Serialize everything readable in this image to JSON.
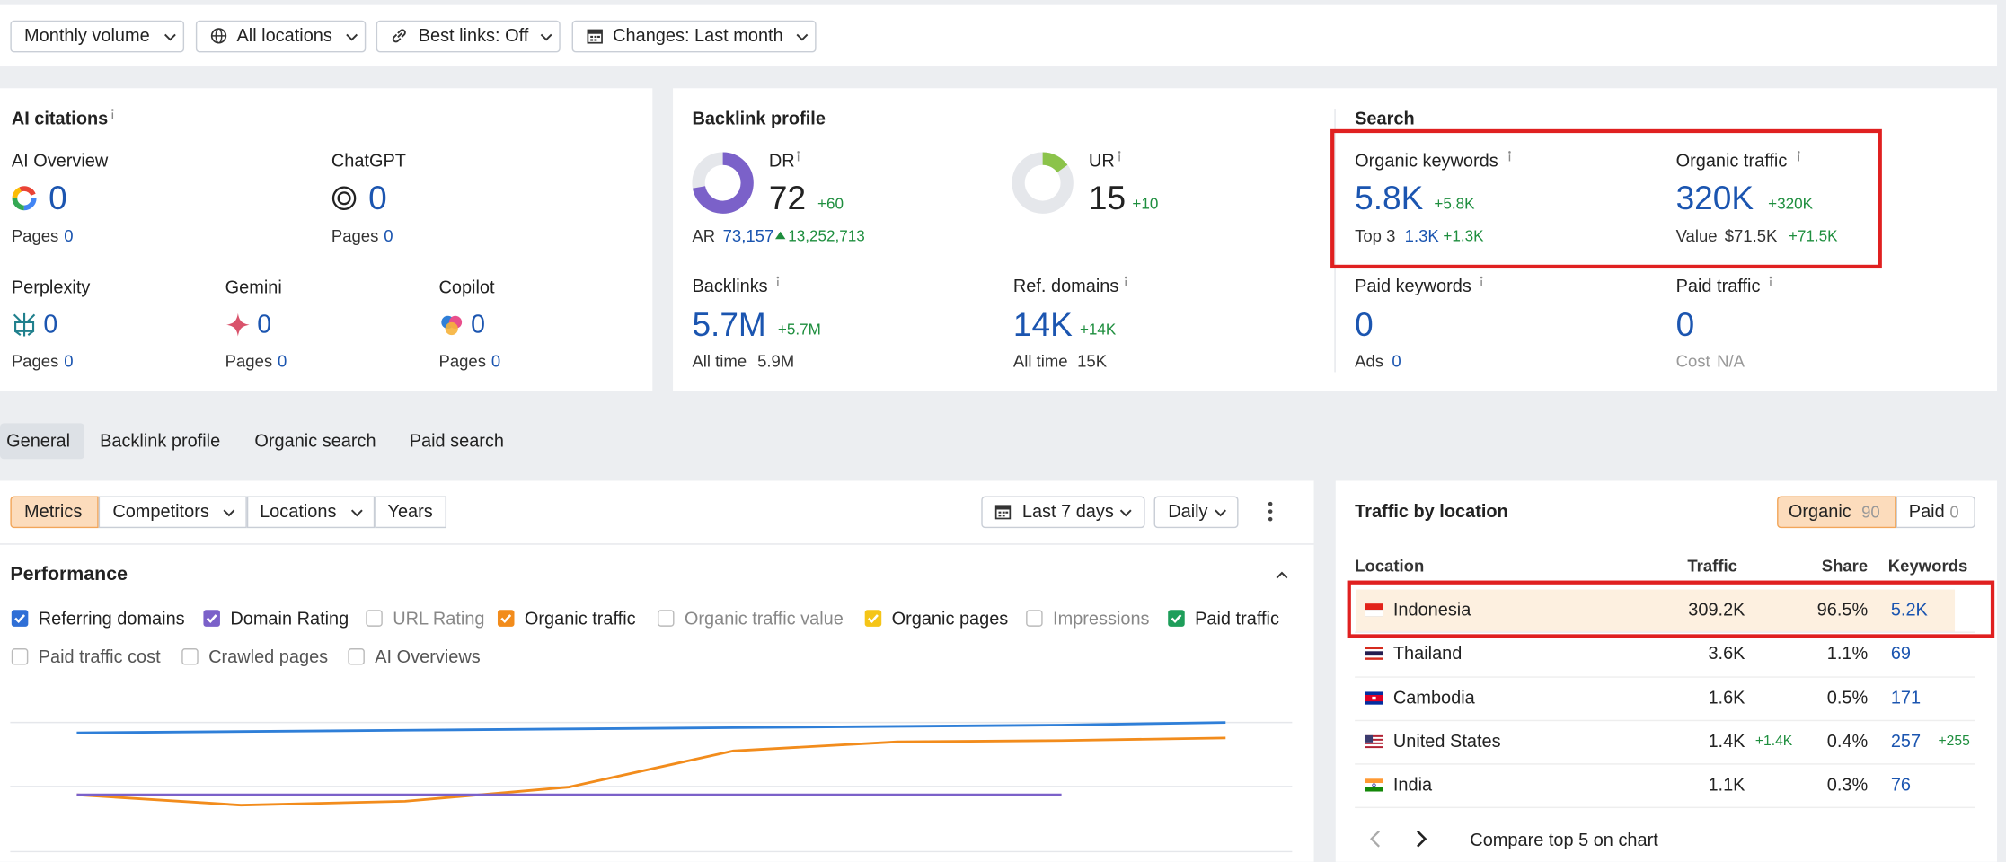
{
  "toolbar": {
    "filters": [
      "Monthly volume",
      "All locations",
      "Best links: Off",
      "Changes: Last month"
    ]
  },
  "ai_citations": {
    "title": "AI citations",
    "pages_label": "Pages",
    "sources": [
      {
        "name": "AI Overview",
        "value": 0,
        "pages": 0
      },
      {
        "name": "ChatGPT",
        "value": 0,
        "pages": 0
      },
      {
        "name": "Perplexity",
        "value": 0,
        "pages": 0
      },
      {
        "name": "Gemini",
        "value": 0,
        "pages": 0
      },
      {
        "name": "Copilot",
        "value": 0,
        "pages": 0
      }
    ]
  },
  "backlink_profile": {
    "title": "Backlink profile",
    "dr": {
      "label": "DR",
      "value": 72,
      "change": "+60",
      "scale": [
        0,
        100
      ],
      "color": "#7b61c9"
    },
    "ar": {
      "label": "AR",
      "value": "73,157",
      "change": "13,252,713"
    },
    "ur": {
      "label": "UR",
      "value": 15,
      "change": "+10",
      "scale": [
        0,
        100
      ],
      "color": "#8bc34a"
    },
    "backlinks": {
      "label": "Backlinks",
      "value": "5.7M",
      "change": "+5.7M",
      "all_time_label": "All time",
      "all_time": "5.9M"
    },
    "ref_domains": {
      "label": "Ref. domains",
      "value": "14K",
      "change": "+14K",
      "all_time_label": "All time",
      "all_time": "15K"
    }
  },
  "search": {
    "title": "Search",
    "organic_keywords": {
      "label": "Organic keywords",
      "value": "5.8K",
      "change": "+5.8K",
      "sub_label": "Top 3",
      "sub_value": "1.3K",
      "sub_change": "+1.3K"
    },
    "organic_traffic": {
      "label": "Organic traffic",
      "value": "320K",
      "change": "+320K",
      "sub_label": "Value",
      "sub_value": "$71.5K",
      "sub_change": "+71.5K"
    },
    "paid_keywords": {
      "label": "Paid keywords",
      "value": 0,
      "sub_label": "Ads",
      "sub_value": 0
    },
    "paid_traffic": {
      "label": "Paid traffic",
      "value": 0,
      "sub_label": "Cost",
      "sub_value": "N/A"
    }
  },
  "tabs": {
    "items": [
      "General",
      "Backlink profile",
      "Organic search",
      "Paid search"
    ],
    "active": 0
  },
  "chart_controls": {
    "buttons": [
      "Metrics",
      "Competitors",
      "Locations",
      "Years"
    ],
    "active": 0,
    "date_range": "Last 7 days",
    "interval": "Daily"
  },
  "performance": {
    "title": "Performance",
    "metrics": [
      {
        "label": "Referring domains",
        "checked": true,
        "color": "#2f6fd6"
      },
      {
        "label": "Domain Rating",
        "checked": true,
        "color": "#7b61c9"
      },
      {
        "label": "URL Rating",
        "checked": false
      },
      {
        "label": "Organic traffic",
        "checked": true,
        "color": "#f28c1c"
      },
      {
        "label": "Organic traffic value",
        "checked": false
      },
      {
        "label": "Organic pages",
        "checked": true,
        "color": "#f5c518"
      },
      {
        "label": "Impressions",
        "checked": false
      },
      {
        "label": "Paid traffic",
        "checked": true,
        "color": "#1e9e5a"
      },
      {
        "label": "Paid traffic cost",
        "checked": false
      },
      {
        "label": "Crawled pages",
        "checked": false
      },
      {
        "label": "AI Overviews",
        "checked": false
      }
    ],
    "chart_data": {
      "type": "line",
      "ylim": [
        0,
        100
      ],
      "series": [
        {
          "color": "#2f7fd8",
          "values": [
            92,
            93,
            94,
            95,
            96,
            97,
            98,
            100
          ]
        },
        {
          "color": "#f28c1c",
          "values": [
            44,
            36,
            39,
            50,
            78,
            85,
            86,
            88
          ]
        },
        {
          "color": "#7b61c9",
          "values": [
            44,
            44,
            44,
            44,
            44,
            44,
            44,
            null
          ]
        }
      ]
    }
  },
  "traffic_by_location": {
    "title": "Traffic by location",
    "toggles": [
      {
        "label": "Organic",
        "count": 90
      },
      {
        "label": "Paid",
        "count": 0
      }
    ],
    "active": 0,
    "columns": [
      "Location",
      "Traffic",
      "Share",
      "Keywords"
    ],
    "rows": [
      {
        "flag": "id",
        "country": "Indonesia",
        "traffic": "309.2K",
        "share": "96.5%",
        "keywords": "5.2K"
      },
      {
        "flag": "th",
        "country": "Thailand",
        "traffic": "3.6K",
        "share": "1.1%",
        "keywords": "69"
      },
      {
        "flag": "kh",
        "country": "Cambodia",
        "traffic": "1.6K",
        "share": "0.5%",
        "keywords": "171"
      },
      {
        "flag": "us",
        "country": "United States",
        "traffic": "1.4K",
        "traffic_change": "+1.4K",
        "share": "0.4%",
        "keywords": "257",
        "keywords_change": "+255"
      },
      {
        "flag": "in",
        "country": "India",
        "traffic": "1.1K",
        "share": "0.3%",
        "keywords": "76"
      }
    ],
    "highlighted": 0,
    "footer": "Compare top 5 on chart"
  }
}
